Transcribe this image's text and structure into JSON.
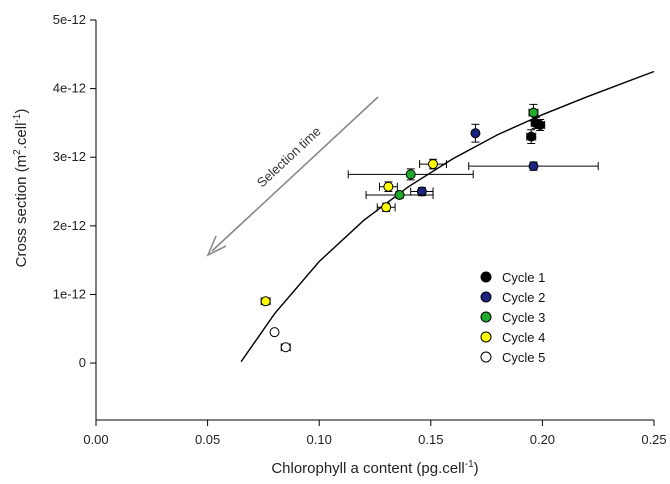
{
  "chart_data": {
    "type": "scatter",
    "xlabel": "Chlorophyll a content (pg.cell",
    "xlabel_sup": "-1",
    "xlabel_end": ")",
    "ylabel": "Cross section (m",
    "ylabel_sup1": "2",
    "ylabel_mid": ".cell",
    "ylabel_sup2": "-1",
    "ylabel_end": ")",
    "xlim": [
      0.0,
      0.25
    ],
    "ylim": [
      -8.3e-13,
      5e-12
    ],
    "x_ticks": [
      0.0,
      0.05,
      0.1,
      0.15,
      0.2,
      0.25
    ],
    "x_tick_labels": [
      "0.00",
      "0.05",
      "0.10",
      "0.15",
      "0.20",
      "0.25"
    ],
    "y_ticks": [
      0,
      1e-12,
      2e-12,
      3e-12,
      4e-12,
      5e-12
    ],
    "y_tick_labels": [
      "0",
      "1e-12",
      "2e-12",
      "3e-12",
      "4e-12",
      "5e-12"
    ],
    "legend_position": "right",
    "annotation": {
      "text": "Selection time",
      "direction": "arrow toward lower-left"
    },
    "fit_curve": {
      "x": [
        0.065,
        0.08,
        0.1,
        0.12,
        0.14,
        0.16,
        0.18,
        0.2,
        0.22,
        0.25
      ],
      "y": [
        2e-14,
        7.2e-13,
        1.48e-12,
        2.08e-12,
        2.57e-12,
        2.98e-12,
        3.33e-12,
        3.62e-12,
        3.88e-12,
        4.25e-12
      ]
    },
    "series": [
      {
        "name": "Cycle 1",
        "color": "#000000",
        "points": [
          {
            "x": 0.195,
            "y": 3.3e-12,
            "xerr": 0.002,
            "yerr": 1e-13
          },
          {
            "x": 0.197,
            "y": 3.5e-12,
            "xerr": 0.002,
            "yerr": 8e-14
          },
          {
            "x": 0.199,
            "y": 3.47e-12,
            "xerr": 0.002,
            "yerr": 8e-14
          }
        ]
      },
      {
        "name": "Cycle 2",
        "color": "#1a237e",
        "points": [
          {
            "x": 0.17,
            "y": 3.35e-12,
            "xerr": 0.0,
            "yerr": 1.3e-13
          },
          {
            "x": 0.196,
            "y": 2.87e-12,
            "xerr": 0.029,
            "yerr": 6e-14
          },
          {
            "x": 0.146,
            "y": 2.5e-12,
            "xerr": 0.005,
            "yerr": 6e-14
          }
        ]
      },
      {
        "name": "Cycle 3",
        "color": "#1faa2b",
        "points": [
          {
            "x": 0.196,
            "y": 3.65e-12,
            "xerr": 0.002,
            "yerr": 1.2e-13
          },
          {
            "x": 0.141,
            "y": 2.75e-12,
            "xerr": 0.028,
            "yerr": 8e-14
          },
          {
            "x": 0.136,
            "y": 2.45e-12,
            "xerr": 0.015,
            "yerr": 5e-14
          }
        ]
      },
      {
        "name": "Cycle 4",
        "color": "#ffff00",
        "points": [
          {
            "x": 0.151,
            "y": 2.9e-12,
            "xerr": 0.006,
            "yerr": 7e-14
          },
          {
            "x": 0.131,
            "y": 2.57e-12,
            "xerr": 0.004,
            "yerr": 7e-14
          },
          {
            "x": 0.13,
            "y": 2.27e-12,
            "xerr": 0.004,
            "yerr": 6e-14
          },
          {
            "x": 0.076,
            "y": 9e-13,
            "xerr": 0.002,
            "yerr": 4e-14
          }
        ]
      },
      {
        "name": "Cycle 5",
        "color": "#ffffff",
        "points": [
          {
            "x": 0.08,
            "y": 4.5e-13,
            "xerr": 0.001,
            "yerr": 3e-14
          },
          {
            "x": 0.085,
            "y": 2.3e-13,
            "xerr": 0.002,
            "yerr": 4e-14
          }
        ]
      }
    ]
  }
}
